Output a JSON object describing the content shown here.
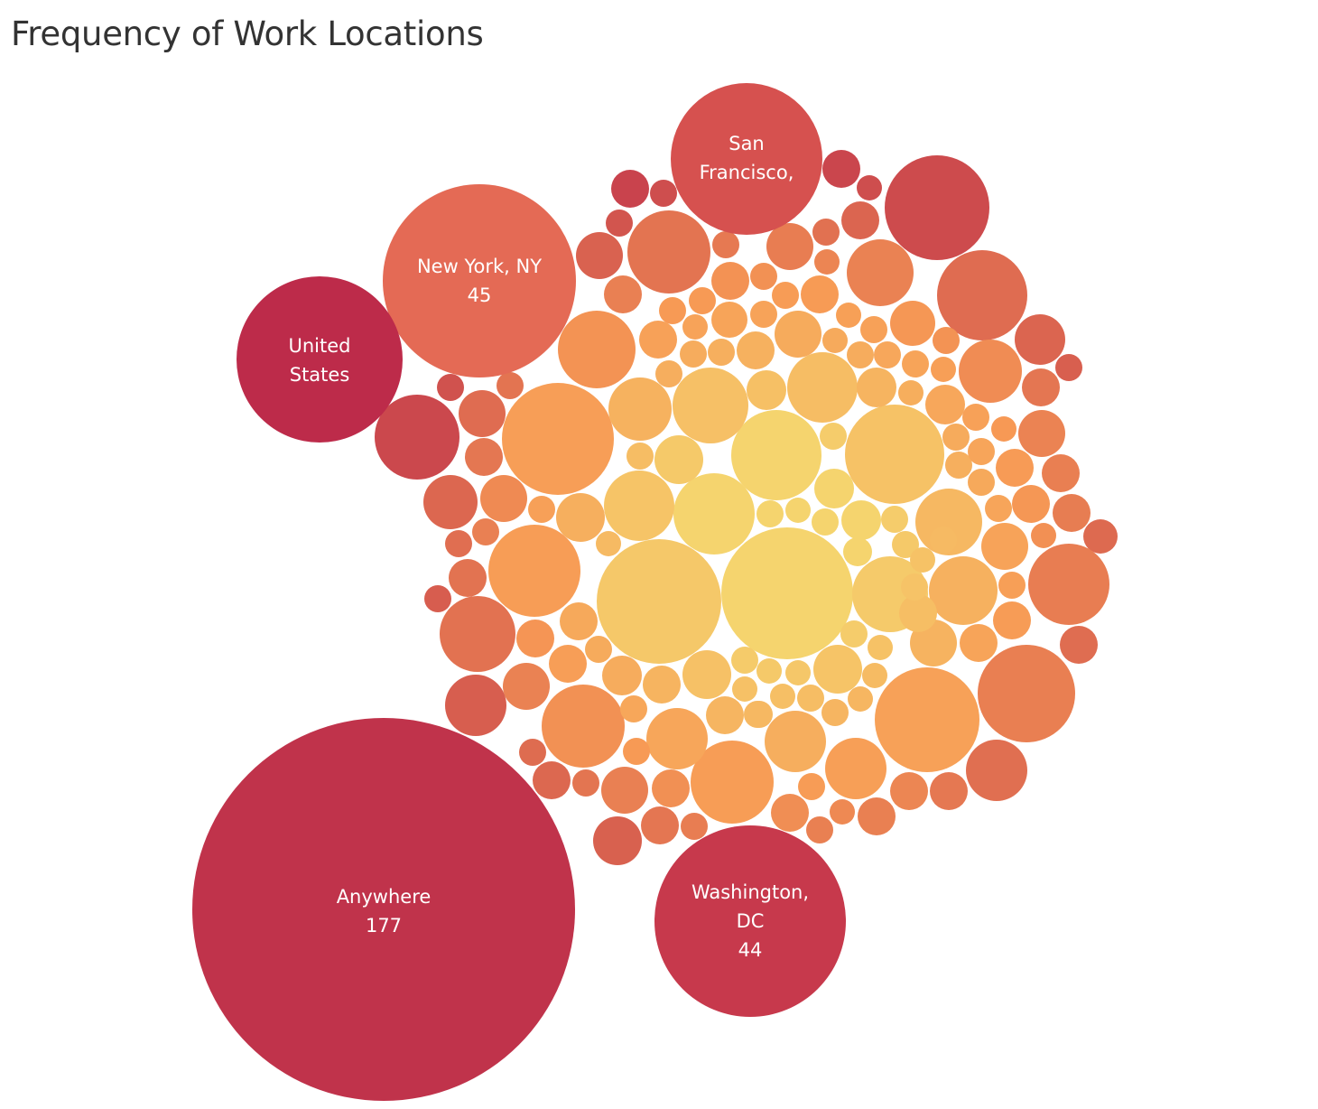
{
  "chart_data": {
    "type": "bubble",
    "title": "Frequency of Work Locations",
    "labeled_bubbles": [
      {
        "location": "Anywhere",
        "value": 177,
        "label_lines": [
          "Anywhere",
          "177"
        ]
      },
      {
        "location": "New York, NY",
        "value": 45,
        "label_lines": [
          "New York, NY",
          "45"
        ]
      },
      {
        "location": "Washington, DC",
        "value": 44,
        "label_lines": [
          "Washington,",
          "DC",
          "44"
        ]
      },
      {
        "location": "San Francisco,",
        "label_lines": [
          "San",
          "Francisco,"
        ]
      },
      {
        "location": "United States",
        "label_lines": [
          "United",
          "States"
        ]
      }
    ],
    "color_scale": {
      "high": "#c0334b",
      "mid": "#f79a55",
      "low": "#f5d46e"
    },
    "unlabeled_bubble_count": 265
  }
}
